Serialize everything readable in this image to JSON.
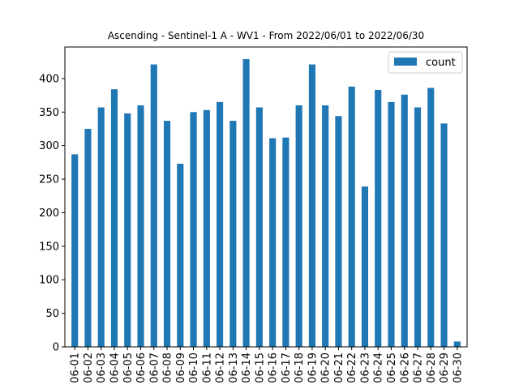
{
  "chart_data": {
    "type": "bar",
    "title": "Ascending - Sentinel-1 A - WV1 - From 2022/06/01 to 2022/06/30",
    "xlabel": "",
    "ylabel": "",
    "categories": [
      "06-01",
      "06-02",
      "06-03",
      "06-04",
      "06-05",
      "06-06",
      "06-07",
      "06-08",
      "06-09",
      "06-10",
      "06-11",
      "06-12",
      "06-13",
      "06-14",
      "06-15",
      "06-16",
      "06-17",
      "06-18",
      "06-19",
      "06-20",
      "06-21",
      "06-22",
      "06-23",
      "06-24",
      "06-25",
      "06-26",
      "06-27",
      "06-28",
      "06-29",
      "06-30"
    ],
    "series": [
      {
        "name": "count",
        "color": "#1f77b4",
        "values": [
          287,
          325,
          357,
          384,
          348,
          360,
          421,
          337,
          273,
          350,
          353,
          365,
          337,
          429,
          357,
          311,
          312,
          360,
          421,
          360,
          344,
          388,
          239,
          383,
          365,
          376,
          357,
          386,
          333,
          8
        ]
      }
    ],
    "ylim": [
      0,
      447
    ],
    "yticks": [
      0,
      50,
      100,
      150,
      200,
      250,
      300,
      350,
      400
    ],
    "grid": false,
    "legend_position": "upper right"
  }
}
